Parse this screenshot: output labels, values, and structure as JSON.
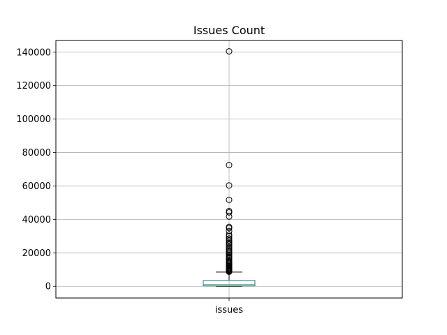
{
  "chart_data": {
    "type": "box",
    "title": "Issues Count",
    "xlabel": "",
    "ylabel": "",
    "categories": [
      "issues"
    ],
    "ylim": [
      -7000,
      147000
    ],
    "yticks": [
      0,
      20000,
      40000,
      60000,
      80000,
      100000,
      120000,
      140000
    ],
    "ytick_labels": [
      "0",
      "20000",
      "40000",
      "60000",
      "80000",
      "100000",
      "120000",
      "140000"
    ],
    "grid": true,
    "box": {
      "q1": 200,
      "median": 1000,
      "q3": 3500,
      "whisker_low": 0,
      "whisker_high": 8500
    },
    "outliers": [
      140500,
      72500,
      60300,
      51700,
      45000,
      44200,
      41700,
      35500,
      34800,
      33000,
      31000,
      30000,
      28600,
      27500,
      26500,
      25800,
      25000,
      24000,
      23000,
      22000,
      21200,
      20500,
      19800,
      19000,
      18200,
      17500,
      16800,
      16000,
      15200,
      14600,
      14000,
      13400,
      12800,
      12200,
      11700,
      11200,
      10800,
      10400,
      10000,
      9700,
      9400,
      9100,
      8900,
      8700
    ],
    "colors": {
      "box": "#1f77b4",
      "median": "#2ca02c",
      "whisker": "#000000",
      "grid": "#b0b0b0"
    }
  }
}
